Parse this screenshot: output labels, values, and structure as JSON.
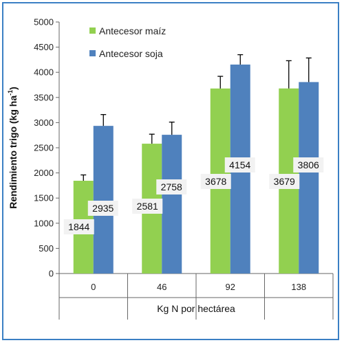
{
  "chart_data": {
    "type": "bar",
    "categories": [
      "0",
      "46",
      "92",
      "138"
    ],
    "series": [
      {
        "name": "Antecesor maíz",
        "color": "#92d050",
        "values": [
          1844,
          2581,
          3678,
          3679
        ],
        "error_upper": [
          1960,
          2770,
          3920,
          4230
        ],
        "data_labels": [
          "1844",
          "2581",
          "3678",
          "3679"
        ]
      },
      {
        "name": "Antecesor soja",
        "color": "#4f81bd",
        "values": [
          2935,
          2758,
          4154,
          3806
        ],
        "error_upper": [
          3160,
          3010,
          4350,
          4285
        ],
        "data_labels": [
          "2935",
          "2758",
          "4154",
          "3806"
        ]
      }
    ],
    "xlabel": "Kg N por hectárea",
    "ylabel": "Rendimiento trigo (kg ha",
    "ylabel_superscript": "-1",
    "ylabel_close": ")",
    "ylim": [
      0,
      5000
    ],
    "yticks": [
      0,
      500,
      1000,
      1500,
      2000,
      2500,
      3000,
      3500,
      4000,
      4500,
      5000
    ],
    "legend_position": "top-left",
    "grid": false
  }
}
